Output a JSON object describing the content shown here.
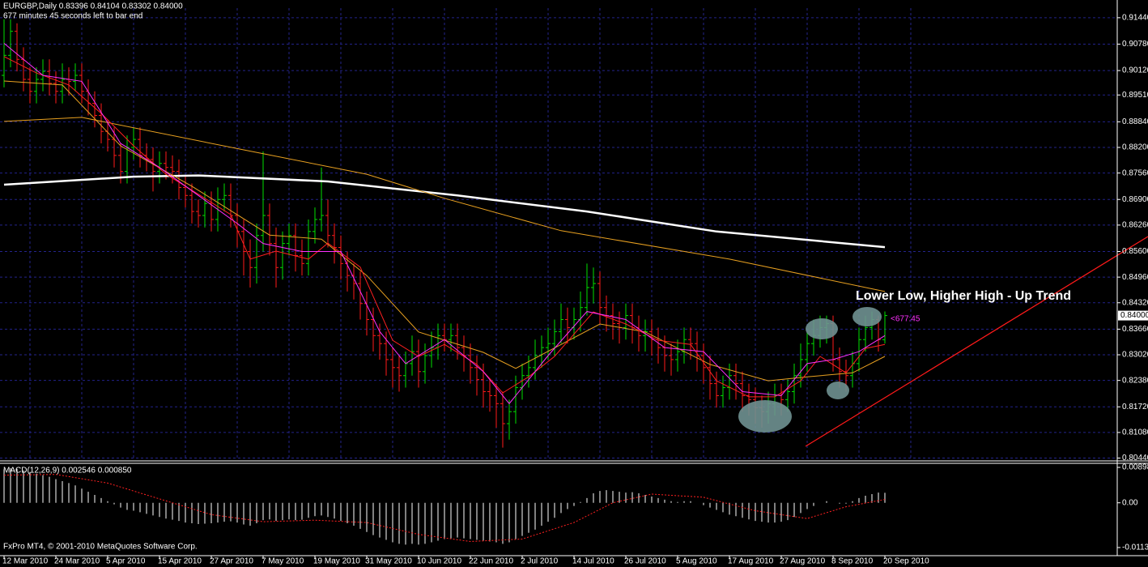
{
  "chart_data": [
    {
      "type": "ohlc",
      "header": "EURGBP,Daily  0.83396 0.84104 0.83302 0.84000",
      "subheader": "677 minutes 45 seconds left to bar end",
      "annotation": "Lower Low, Higher High - Up Trend",
      "timer_label": "<677:45",
      "up_color": "#00e000",
      "down_color": "#ff1a1a",
      "grid": true,
      "xlim": [
        -0.625,
        171.875
      ],
      "ylim": [
        0.8039,
        0.9168
      ],
      "yticks": [
        {
          "value": 0.9144,
          "label": "0.91440"
        },
        {
          "value": 0.9078,
          "label": "0.90780"
        },
        {
          "value": 0.9012,
          "label": "0.90120"
        },
        {
          "value": 0.8951,
          "label": "0.89510"
        },
        {
          "value": 0.8884,
          "label": "0.88840"
        },
        {
          "value": 0.882,
          "label": "0.88200"
        },
        {
          "value": 0.8756,
          "label": "0.87560"
        },
        {
          "value": 0.869,
          "label": "0.86900"
        },
        {
          "value": 0.8626,
          "label": "0.86260"
        },
        {
          "value": 0.856,
          "label": "0.85600"
        },
        {
          "value": 0.8496,
          "label": "0.84960"
        },
        {
          "value": 0.8432,
          "label": "0.84320"
        },
        {
          "value": 0.8366,
          "label": "0.83660"
        },
        {
          "value": 0.8302,
          "label": "0.83020"
        },
        {
          "value": 0.8238,
          "label": "0.82380"
        },
        {
          "value": 0.8172,
          "label": "0.81720"
        },
        {
          "value": 0.8108,
          "label": "0.81080"
        },
        {
          "value": 0.8044,
          "label": "0.80440"
        }
      ],
      "current_price": {
        "value": 0.84,
        "label": "0.84000"
      },
      "xticks": [
        {
          "value": 0,
          "label": "12 Mar 2010"
        },
        {
          "value": 8,
          "label": "24 Mar 2010"
        },
        {
          "value": 16,
          "label": "5 Apr 2010"
        },
        {
          "value": 24,
          "label": "15 Apr 2010"
        },
        {
          "value": 32,
          "label": "27 Apr 2010"
        },
        {
          "value": 40,
          "label": "7 May 2010"
        },
        {
          "value": 48,
          "label": "19 May 2010"
        },
        {
          "value": 56,
          "label": "31 May 2010"
        },
        {
          "value": 64,
          "label": "10 Jun 2010"
        },
        {
          "value": 72,
          "label": "22 Jun 2010"
        },
        {
          "value": 80,
          "label": "2 Jul 2010"
        },
        {
          "value": 88,
          "label": "14 Jul 2010"
        },
        {
          "value": 96,
          "label": "26 Jul 2010"
        },
        {
          "value": 104,
          "label": "5 Aug 2010"
        },
        {
          "value": 112,
          "label": "17 Aug 2010"
        },
        {
          "value": 120,
          "label": "27 Aug 2010"
        },
        {
          "value": 128,
          "label": "8 Sep 2010"
        },
        {
          "value": 136,
          "label": "20 Sep 2010"
        }
      ],
      "open": [
        0.9,
        0.905,
        0.911,
        0.904,
        0.899,
        0.896,
        0.899,
        0.901,
        0.898,
        0.896,
        0.899,
        0.8985,
        0.9,
        0.896,
        0.893,
        0.89,
        0.886,
        0.884,
        0.88,
        0.876,
        0.882,
        0.884,
        0.88,
        0.879,
        0.876,
        0.878,
        0.877,
        0.876,
        0.872,
        0.87,
        0.866,
        0.865,
        0.868,
        0.864,
        0.869,
        0.87,
        0.865,
        0.861,
        0.856,
        0.852,
        0.86,
        0.865,
        0.858,
        0.852,
        0.858,
        0.86,
        0.855,
        0.853,
        0.861,
        0.864,
        0.865,
        0.86,
        0.857,
        0.853,
        0.85,
        0.848,
        0.843,
        0.839,
        0.835,
        0.833,
        0.829,
        0.827,
        0.825,
        0.828,
        0.831,
        0.826,
        0.83,
        0.832,
        0.835,
        0.834,
        0.835,
        0.832,
        0.83,
        0.827,
        0.824,
        0.821,
        0.82,
        0.818,
        0.813,
        0.816,
        0.822,
        0.825,
        0.827,
        0.83,
        0.832,
        0.833,
        0.836,
        0.839,
        0.837,
        0.839,
        0.842,
        0.847,
        0.848,
        0.842,
        0.84,
        0.838,
        0.837,
        0.84,
        0.837,
        0.835,
        0.836,
        0.834,
        0.832,
        0.83,
        0.829,
        0.831,
        0.834,
        0.833,
        0.83,
        0.827,
        0.823,
        0.82,
        0.822,
        0.825,
        0.823,
        0.82,
        0.819,
        0.817,
        0.816,
        0.818,
        0.82,
        0.819,
        0.821,
        0.825,
        0.829,
        0.833,
        0.835,
        0.837,
        0.838,
        0.829,
        0.826,
        0.825,
        0.828,
        0.834,
        0.837,
        0.839,
        0.83396
      ],
      "high": [
        0.914,
        0.914,
        0.913,
        0.907,
        0.902,
        0.902,
        0.904,
        0.904,
        0.901,
        0.903,
        0.902,
        0.903,
        0.903,
        0.899,
        0.896,
        0.893,
        0.889,
        0.887,
        0.883,
        0.885,
        0.887,
        0.887,
        0.883,
        0.882,
        0.881,
        0.881,
        0.88,
        0.879,
        0.875,
        0.873,
        0.869,
        0.871,
        0.871,
        0.872,
        0.873,
        0.873,
        0.868,
        0.864,
        0.859,
        0.863,
        0.881,
        0.868,
        0.862,
        0.861,
        0.863,
        0.863,
        0.859,
        0.864,
        0.867,
        0.877,
        0.869,
        0.863,
        0.86,
        0.856,
        0.853,
        0.851,
        0.846,
        0.842,
        0.838,
        0.836,
        0.832,
        0.83,
        0.831,
        0.835,
        0.834,
        0.833,
        0.836,
        0.838,
        0.838,
        0.838,
        0.838,
        0.835,
        0.833,
        0.83,
        0.828,
        0.824,
        0.823,
        0.821,
        0.819,
        0.825,
        0.828,
        0.83,
        0.834,
        0.835,
        0.837,
        0.839,
        0.843,
        0.842,
        0.842,
        0.846,
        0.853,
        0.852,
        0.851,
        0.845,
        0.843,
        0.841,
        0.843,
        0.843,
        0.84,
        0.839,
        0.839,
        0.837,
        0.835,
        0.833,
        0.834,
        0.837,
        0.837,
        0.836,
        0.833,
        0.83,
        0.826,
        0.825,
        0.828,
        0.828,
        0.826,
        0.823,
        0.822,
        0.82,
        0.821,
        0.823,
        0.823,
        0.824,
        0.828,
        0.833,
        0.836,
        0.839,
        0.84,
        0.84,
        0.84,
        0.832,
        0.829,
        0.831,
        0.837,
        0.84,
        0.841,
        0.84,
        0.84104
      ],
      "low": [
        0.897,
        0.902,
        0.901,
        0.896,
        0.893,
        0.893,
        0.896,
        0.895,
        0.893,
        0.893,
        0.895,
        0.896,
        0.893,
        0.89,
        0.887,
        0.883,
        0.881,
        0.877,
        0.873,
        0.873,
        0.879,
        0.877,
        0.876,
        0.871,
        0.873,
        0.874,
        0.873,
        0.869,
        0.867,
        0.863,
        0.862,
        0.862,
        0.861,
        0.861,
        0.866,
        0.862,
        0.857,
        0.85,
        0.847,
        0.848,
        0.856,
        0.855,
        0.847,
        0.849,
        0.855,
        0.851,
        0.85,
        0.85,
        0.858,
        0.861,
        0.857,
        0.853,
        0.849,
        0.846,
        0.844,
        0.839,
        0.835,
        0.831,
        0.829,
        0.825,
        0.822,
        0.821,
        0.822,
        0.825,
        0.822,
        0.823,
        0.827,
        0.829,
        0.831,
        0.831,
        0.829,
        0.826,
        0.823,
        0.82,
        0.817,
        0.816,
        0.812,
        0.807,
        0.809,
        0.813,
        0.819,
        0.822,
        0.824,
        0.827,
        0.829,
        0.83,
        0.833,
        0.833,
        0.834,
        0.836,
        0.84,
        0.843,
        0.838,
        0.836,
        0.834,
        0.833,
        0.834,
        0.833,
        0.831,
        0.831,
        0.83,
        0.828,
        0.826,
        0.825,
        0.826,
        0.828,
        0.829,
        0.826,
        0.823,
        0.819,
        0.817,
        0.817,
        0.819,
        0.819,
        0.816,
        0.815,
        0.813,
        0.812,
        0.813,
        0.815,
        0.815,
        0.816,
        0.818,
        0.822,
        0.826,
        0.83,
        0.832,
        0.833,
        0.826,
        0.822,
        0.821,
        0.822,
        0.826,
        0.831,
        0.834,
        0.831,
        0.83302
      ],
      "close": [
        0.905,
        0.911,
        0.904,
        0.899,
        0.896,
        0.899,
        0.901,
        0.898,
        0.896,
        0.899,
        0.8985,
        0.9,
        0.896,
        0.893,
        0.89,
        0.886,
        0.884,
        0.88,
        0.876,
        0.882,
        0.884,
        0.88,
        0.879,
        0.876,
        0.878,
        0.877,
        0.876,
        0.872,
        0.87,
        0.866,
        0.865,
        0.868,
        0.864,
        0.869,
        0.87,
        0.865,
        0.861,
        0.856,
        0.852,
        0.86,
        0.865,
        0.858,
        0.852,
        0.858,
        0.86,
        0.855,
        0.853,
        0.861,
        0.864,
        0.865,
        0.86,
        0.857,
        0.853,
        0.85,
        0.848,
        0.843,
        0.839,
        0.835,
        0.833,
        0.829,
        0.827,
        0.825,
        0.828,
        0.831,
        0.826,
        0.83,
        0.832,
        0.835,
        0.834,
        0.835,
        0.832,
        0.83,
        0.827,
        0.824,
        0.821,
        0.82,
        0.818,
        0.813,
        0.816,
        0.822,
        0.825,
        0.827,
        0.83,
        0.832,
        0.833,
        0.836,
        0.839,
        0.837,
        0.839,
        0.842,
        0.847,
        0.848,
        0.842,
        0.84,
        0.838,
        0.837,
        0.84,
        0.837,
        0.835,
        0.836,
        0.834,
        0.832,
        0.83,
        0.829,
        0.831,
        0.834,
        0.833,
        0.83,
        0.827,
        0.823,
        0.82,
        0.822,
        0.825,
        0.823,
        0.82,
        0.819,
        0.817,
        0.816,
        0.818,
        0.82,
        0.819,
        0.821,
        0.825,
        0.829,
        0.833,
        0.835,
        0.837,
        0.838,
        0.829,
        0.826,
        0.825,
        0.828,
        0.834,
        0.837,
        0.839,
        0.834,
        0.84
      ],
      "lines": [
        {
          "color": "#ffffff",
          "x": [
            0,
            20,
            30,
            50,
            70,
            90,
            110,
            136
          ],
          "values": [
            0.8727,
            0.8747,
            0.875,
            0.8735,
            0.87,
            0.866,
            0.861,
            0.8571
          ]
        },
        {
          "color": "#e8a020",
          "x": [
            0,
            12,
            37,
            56,
            68,
            86,
            112,
            136
          ],
          "values": [
            0.8885,
            0.8895,
            0.8814,
            0.8753,
            0.8693,
            0.8612,
            0.8541,
            0.846
          ]
        },
        {
          "color": "#e8a020",
          "x": [
            0,
            9,
            18,
            29,
            41,
            49,
            56,
            64,
            74,
            79,
            92,
            99,
            109,
            118,
            124,
            131,
            136
          ],
          "values": [
            0.8986,
            0.8976,
            0.8824,
            0.8723,
            0.8601,
            0.8591,
            0.85,
            0.8359,
            0.8308,
            0.8268,
            0.8379,
            0.8359,
            0.8278,
            0.8237,
            0.8247,
            0.8257,
            0.8298
          ]
        },
        {
          "color": "#ff2020",
          "x": [
            0,
            5,
            10,
            15,
            20,
            25,
            30,
            35,
            38,
            42,
            47,
            50,
            55,
            60,
            64,
            68,
            73,
            77,
            81,
            85,
            91,
            96,
            101,
            106,
            110,
            115,
            119,
            123,
            126,
            130,
            133,
            136
          ],
          "values": [
            0.9047,
            0.9006,
            0.8976,
            0.8905,
            0.8824,
            0.8753,
            0.8703,
            0.8652,
            0.8541,
            0.8561,
            0.8541,
            0.8581,
            0.8521,
            0.8338,
            0.8298,
            0.8328,
            0.8278,
            0.8207,
            0.8247,
            0.8298,
            0.8409,
            0.8379,
            0.8338,
            0.8328,
            0.8237,
            0.8197,
            0.8197,
            0.8237,
            0.8298,
            0.8257,
            0.8318,
            0.8328
          ]
        },
        {
          "color": "#ff30ff",
          "x": [
            0,
            6,
            12,
            18,
            24,
            30,
            36,
            40,
            46,
            52,
            58,
            62,
            68,
            74,
            78,
            84,
            90,
            96,
            102,
            108,
            114,
            120,
            124,
            128,
            132,
            136
          ],
          "values": [
            0.908,
            0.9,
            0.8985,
            0.883,
            0.877,
            0.87,
            0.863,
            0.858,
            0.856,
            0.856,
            0.836,
            0.828,
            0.834,
            0.826,
            0.818,
            0.83,
            0.841,
            0.839,
            0.832,
            0.831,
            0.821,
            0.82,
            0.828,
            0.829,
            0.831,
            0.835
          ]
        }
      ]
    },
    {
      "type": "macd",
      "label": "MACD(12,26,9) 0.002546 0.000850",
      "hist_color": "#ffffff",
      "xlim": [
        -0.625,
        171.875
      ],
      "ylim": [
        -0.0134,
        0.0098
      ],
      "yticks": [
        {
          "value": 0.00898,
          "label": "0.00898"
        },
        {
          "value": 0,
          "label": "0.00"
        },
        {
          "value": -0.01134,
          "label": "-0.01134"
        }
      ],
      "values": [
        0.0085,
        0.0088,
        0.0086,
        0.0082,
        0.0078,
        0.0074,
        0.007,
        0.0066,
        0.006,
        0.0055,
        0.005,
        0.0044,
        0.0036,
        0.0028,
        0.002,
        0.0012,
        0.0004,
        -0.0004,
        -0.0012,
        -0.0018,
        -0.002,
        -0.0024,
        -0.0028,
        -0.0032,
        -0.0036,
        -0.004,
        -0.0043,
        -0.0046,
        -0.005,
        -0.0052,
        -0.0054,
        -0.0053,
        -0.0052,
        -0.005,
        -0.0048,
        -0.0047,
        -0.005,
        -0.0055,
        -0.0058,
        -0.0052,
        -0.0044,
        -0.0042,
        -0.0046,
        -0.0044,
        -0.0042,
        -0.0044,
        -0.0043,
        -0.0038,
        -0.0034,
        -0.0032,
        -0.0036,
        -0.004,
        -0.0046,
        -0.0052,
        -0.0058,
        -0.0066,
        -0.0074,
        -0.0082,
        -0.0088,
        -0.0094,
        -0.01,
        -0.0104,
        -0.0106,
        -0.0104,
        -0.0106,
        -0.0104,
        -0.01,
        -0.0096,
        -0.0092,
        -0.009,
        -0.0088,
        -0.009,
        -0.0092,
        -0.0094,
        -0.0096,
        -0.0098,
        -0.01,
        -0.0104,
        -0.01,
        -0.0092,
        -0.0084,
        -0.0076,
        -0.0068,
        -0.0058,
        -0.0048,
        -0.0038,
        -0.0026,
        -0.0016,
        -0.0008,
        0.0002,
        0.0012,
        0.0024,
        0.003,
        0.0032,
        0.003,
        0.0028,
        0.0026,
        0.0027,
        0.0024,
        0.002,
        0.0016,
        0.0012,
        0.0008,
        0.0004,
        0.0002,
        0.0004,
        0.0004,
        0.0,
        -0.0006,
        -0.0012,
        -0.0018,
        -0.0024,
        -0.003,
        -0.0034,
        -0.0038,
        -0.0042,
        -0.0046,
        -0.0048,
        -0.005,
        -0.005,
        -0.0048,
        -0.0044,
        -0.0036,
        -0.0026,
        -0.0016,
        -0.0008,
        0.0,
        0.0004,
        0.0,
        -0.0002,
        -0.0002,
        0.0004,
        0.0012,
        0.0018,
        0.0022,
        0.0026,
        0.002546
      ],
      "signal": {
        "color": "#ff2020",
        "x": [
          0,
          8,
          16,
          24,
          32,
          40,
          48,
          56,
          64,
          72,
          80,
          88,
          94,
          100,
          108,
          116,
          124,
          130,
          136
        ],
        "values": [
          0.007,
          0.0072,
          0.005,
          0.001,
          -0.003,
          -0.0048,
          -0.0044,
          -0.005,
          -0.008,
          -0.0098,
          -0.0092,
          -0.005,
          0.0,
          0.0022,
          0.0014,
          -0.002,
          -0.004,
          -0.001,
          0.00085
        ]
      }
    }
  ],
  "footer": "FxPro MT4, © 2001-2010 MetaQuotes Software Corp."
}
